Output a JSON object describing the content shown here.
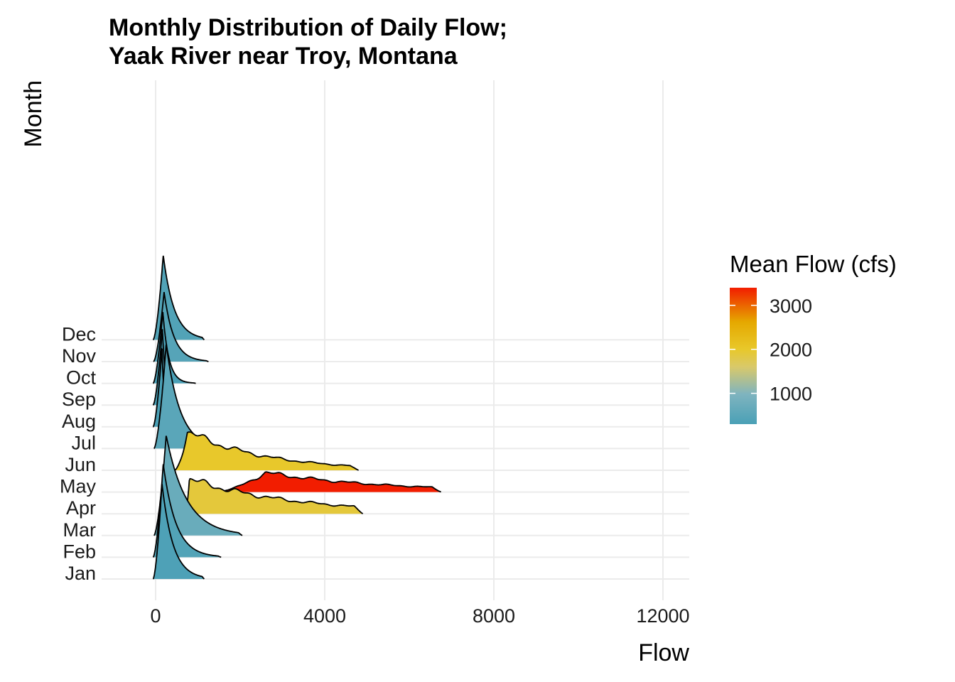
{
  "chart_data": {
    "type": "ridgeline",
    "title_line1": "Monthly Distribution of Daily Flow;",
    "title_line2": "Yaak River near Troy, Montana",
    "xlabel": "Flow",
    "ylabel": "Month",
    "xlim": [
      -1300,
      12600
    ],
    "x_ticks": [
      0,
      4000,
      8000,
      12000
    ],
    "x_tick_labels": [
      "0",
      "4000",
      "8000",
      "12000"
    ],
    "grid": true,
    "legend": {
      "title": "Mean Flow (cfs)",
      "placement": "right",
      "min": 300,
      "max": 3400,
      "ticks": [
        1000,
        2000,
        3000
      ],
      "tick_labels": [
        "1000",
        "2000",
        "3000"
      ],
      "colors": [
        "#4aa0b6",
        "#e8c82a",
        "#e5a800",
        "#f21d00"
      ]
    },
    "months": [
      {
        "name": "Jan",
        "mean_flow": 350,
        "peak_x": 150,
        "peak_height": 4.4,
        "max_x": 1150,
        "min_x": -60,
        "decay": 260
      },
      {
        "name": "Feb",
        "mean_flow": 400,
        "peak_x": 180,
        "peak_height": 4.3,
        "max_x": 1550,
        "min_x": -60,
        "decay": 300
      },
      {
        "name": "Mar",
        "mean_flow": 700,
        "peak_x": 250,
        "peak_height": 4.6,
        "max_x": 2050,
        "min_x": -40,
        "decay": 480
      },
      {
        "name": "Apr",
        "mean_flow": 1900,
        "peak_x": 800,
        "peak_height": 1.6,
        "max_x": 4900,
        "min_x": 700,
        "decay": 2500
      },
      {
        "name": "May",
        "mean_flow": 3400,
        "peak_x": 2600,
        "peak_height": 0.9,
        "max_x": 6750,
        "min_x": 1400,
        "decay": 2800
      },
      {
        "name": "Jun",
        "mean_flow": 2000,
        "peak_x": 750,
        "peak_height": 1.8,
        "max_x": 4800,
        "min_x": 450,
        "decay": 1800
      },
      {
        "name": "Jul",
        "mean_flow": 500,
        "peak_x": 250,
        "peak_height": 4.8,
        "max_x": 1200,
        "min_x": -40,
        "decay": 330
      },
      {
        "name": "Aug",
        "mean_flow": 180,
        "peak_x": 150,
        "peak_height": 3.6,
        "max_x": 300,
        "min_x": -60,
        "decay": 60
      },
      {
        "name": "Sep",
        "mean_flow": 200,
        "peak_x": 160,
        "peak_height": 3.5,
        "max_x": 450,
        "min_x": -60,
        "decay": 80
      },
      {
        "name": "Oct",
        "mean_flow": 300,
        "peak_x": 170,
        "peak_height": 3.3,
        "max_x": 950,
        "min_x": -60,
        "decay": 140
      },
      {
        "name": "Nov",
        "mean_flow": 450,
        "peak_x": 200,
        "peak_height": 3.2,
        "max_x": 1250,
        "min_x": -50,
        "decay": 230
      },
      {
        "name": "Dec",
        "mean_flow": 400,
        "peak_x": 180,
        "peak_height": 3.9,
        "max_x": 1150,
        "min_x": -60,
        "decay": 260
      }
    ]
  }
}
